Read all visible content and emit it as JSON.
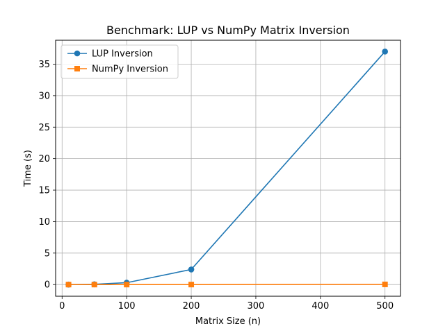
{
  "chart_data": {
    "type": "line",
    "title": "Benchmark: LUP vs NumPy Matrix Inversion",
    "xlabel": "Matrix Size (n)",
    "ylabel": "Time (s)",
    "xlim": [
      -10,
      524
    ],
    "ylim": [
      -1.85,
      38.8
    ],
    "xticks": [
      0,
      100,
      200,
      300,
      400,
      500
    ],
    "yticks": [
      0,
      5,
      10,
      15,
      20,
      25,
      30,
      35
    ],
    "grid": true,
    "legend_position": "upper-left",
    "series": [
      {
        "name": "LUP Inversion",
        "color": "#1f77b4",
        "marker": "circle",
        "x": [
          10,
          50,
          100,
          200,
          500
        ],
        "y": [
          0.002,
          0.04,
          0.3,
          2.4,
          37.0
        ]
      },
      {
        "name": "NumPy Inversion",
        "color": "#ff7f0e",
        "marker": "square",
        "x": [
          10,
          50,
          100,
          200,
          500
        ],
        "y": [
          0.0001,
          0.0005,
          0.001,
          0.004,
          0.03
        ]
      }
    ]
  }
}
